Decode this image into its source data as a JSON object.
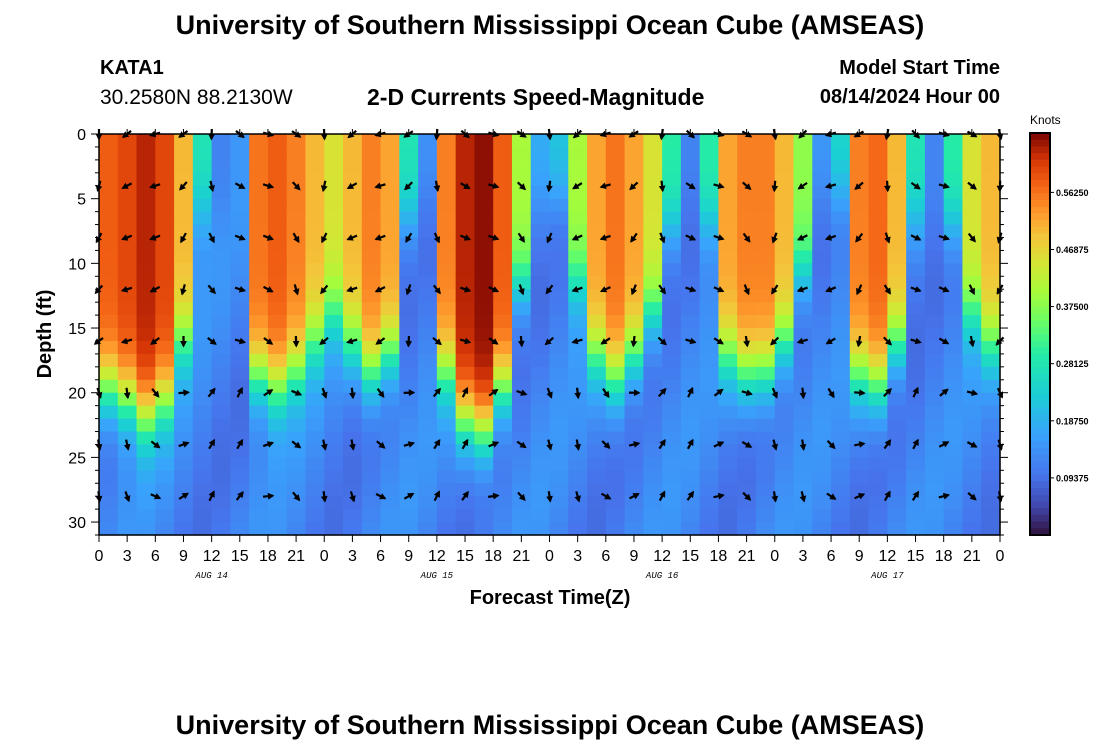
{
  "page": {
    "title": "University of Southern Mississippi Ocean Cube (AMSEAS)",
    "footer_title": "University of Southern Mississippi Ocean Cube (AMSEAS)"
  },
  "station": {
    "id": "KATA1",
    "coords": "30.2580N  88.2130W"
  },
  "model": {
    "label": "Model Start Time",
    "start": "08/14/2024 Hour 00"
  },
  "chart_data": {
    "type": "heatmap",
    "title": "2-D Currents Speed-Magnitude",
    "xlabel": "Forecast Time(Z)",
    "ylabel": "Depth (ft)",
    "colorbar_label": "Knots",
    "x_range_hours": [
      0,
      96
    ],
    "y_range_ft": [
      0,
      31
    ],
    "x_tick_labels": [
      "0",
      "3",
      "6",
      "9",
      "12",
      "15",
      "18",
      "21",
      "0",
      "3",
      "6",
      "9",
      "12",
      "15",
      "18",
      "21",
      "0",
      "3",
      "6",
      "9",
      "12",
      "15",
      "18",
      "21",
      "0",
      "3",
      "6",
      "9",
      "12",
      "15",
      "18",
      "21",
      "0"
    ],
    "y_ticks": [
      0,
      5,
      10,
      15,
      20,
      25,
      30
    ],
    "date_labels": [
      {
        "label": "AUG 14",
        "hour": 12
      },
      {
        "label": "AUG 15",
        "hour": 36
      },
      {
        "label": "AUG 16",
        "hour": 60
      },
      {
        "label": "AUG 17",
        "hour": 84
      }
    ],
    "colorbar_ticks": [
      "0.56250",
      "0.46875",
      "0.37500",
      "0.28125",
      "0.18750",
      "0.09375"
    ],
    "colorbar_values": [
      0.5625,
      0.46875,
      0.375,
      0.28125,
      0.1875,
      0.09375
    ],
    "color_range": [
      0,
      0.66
    ],
    "vector_depths_ft": [
      0,
      4,
      8,
      12,
      16,
      20,
      24,
      28
    ],
    "surface_speed_by_hour_knots": [
      0.58,
      0.6,
      0.63,
      0.6,
      0.5,
      0.28,
      0.12,
      0.15,
      0.56,
      0.58,
      0.55,
      0.5,
      0.45,
      0.5,
      0.55,
      0.52,
      0.28,
      0.14,
      0.55,
      0.63,
      0.65,
      0.58,
      0.4,
      0.18,
      0.22,
      0.4,
      0.52,
      0.56,
      0.52,
      0.45,
      0.3,
      0.12,
      0.3,
      0.52,
      0.55,
      0.55,
      0.5,
      0.38,
      0.15,
      0.25,
      0.55,
      0.57,
      0.5,
      0.28,
      0.12,
      0.3,
      0.45,
      0.5
    ]
  }
}
